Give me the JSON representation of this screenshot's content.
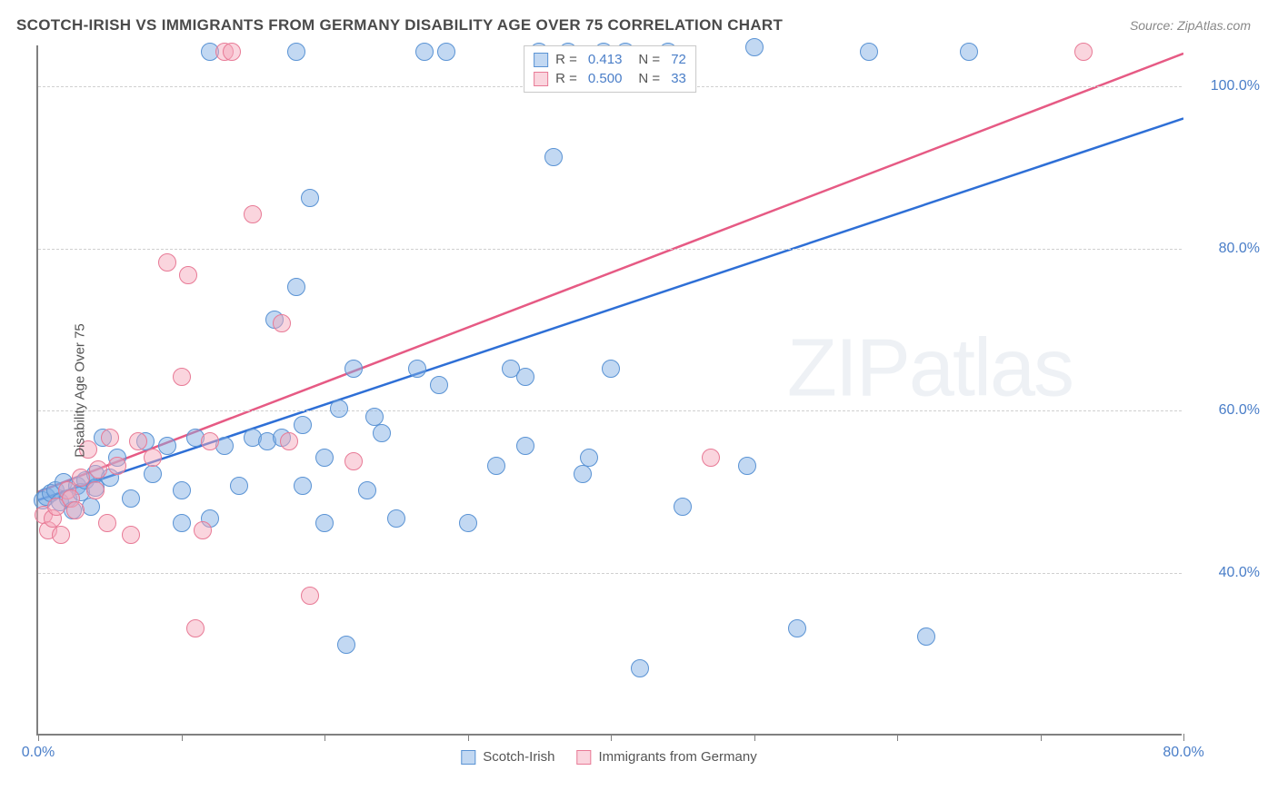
{
  "title": "SCOTCH-IRISH VS IMMIGRANTS FROM GERMANY DISABILITY AGE OVER 75 CORRELATION CHART",
  "source": "Source: ZipAtlas.com",
  "ylabel": "Disability Age Over 75",
  "watermark_a": "ZIP",
  "watermark_b": "atlas",
  "chart": {
    "type": "scatter",
    "xlim": [
      0,
      80
    ],
    "ylim": [
      20,
      105
    ],
    "xticks": [
      0,
      10,
      20,
      30,
      40,
      50,
      60,
      70,
      80
    ],
    "xtick_labels": {
      "0": "0.0%",
      "80": "80.0%"
    },
    "yticks": [
      40,
      60,
      80,
      100
    ],
    "ytick_labels": [
      "40.0%",
      "60.0%",
      "80.0%",
      "100.0%"
    ],
    "grid_color": "#d0d0d0",
    "axis_color": "#808080",
    "background_color": "#ffffff",
    "marker_radius": 10,
    "series": [
      {
        "name": "Scotch-Irish",
        "fill": "rgba(127,173,228,0.48)",
        "stroke": "#5a93d4",
        "trend_color": "#2e6fd6",
        "trend": {
          "x1": 0,
          "y1": 49,
          "x2": 80,
          "y2": 96
        },
        "R": "0.413",
        "N": "72",
        "points": [
          [
            0.3,
            48.8
          ],
          [
            0.6,
            49.2
          ],
          [
            0.9,
            49.6
          ],
          [
            1.2,
            50.0
          ],
          [
            1.5,
            48.5
          ],
          [
            1.8,
            51.0
          ],
          [
            2.1,
            49.0
          ],
          [
            2.4,
            47.5
          ],
          [
            2.7,
            50.5
          ],
          [
            3.0,
            49.8
          ],
          [
            3.3,
            51.2
          ],
          [
            3.7,
            48.0
          ],
          [
            4.0,
            52.0
          ],
          [
            4.0,
            50.3
          ],
          [
            4.5,
            56.5
          ],
          [
            5.0,
            51.5
          ],
          [
            5.5,
            54.0
          ],
          [
            6.5,
            49.0
          ],
          [
            7.5,
            56.0
          ],
          [
            8.0,
            52.0
          ],
          [
            9.0,
            55.5
          ],
          [
            10.0,
            46.0
          ],
          [
            10.0,
            50.0
          ],
          [
            11.0,
            56.5
          ],
          [
            12.0,
            46.5
          ],
          [
            12.0,
            104.0
          ],
          [
            13.0,
            55.5
          ],
          [
            14.0,
            50.5
          ],
          [
            15.0,
            56.5
          ],
          [
            16.0,
            56.0
          ],
          [
            16.5,
            71.0
          ],
          [
            17.0,
            56.5
          ],
          [
            18.5,
            50.5
          ],
          [
            18.0,
            104.0
          ],
          [
            18.0,
            75.0
          ],
          [
            18.5,
            58.0
          ],
          [
            19.0,
            86.0
          ],
          [
            20.0,
            46.0
          ],
          [
            20.0,
            54.0
          ],
          [
            21.0,
            60.0
          ],
          [
            21.5,
            31.0
          ],
          [
            22.0,
            65.0
          ],
          [
            23.0,
            50.0
          ],
          [
            23.5,
            59.0
          ],
          [
            24.0,
            57.0
          ],
          [
            25.0,
            46.5
          ],
          [
            26.5,
            65.0
          ],
          [
            27.0,
            104.0
          ],
          [
            28.0,
            63.0
          ],
          [
            28.5,
            104.0
          ],
          [
            30.0,
            46.0
          ],
          [
            32.0,
            53.0
          ],
          [
            33.0,
            65.0
          ],
          [
            34.0,
            64.0
          ],
          [
            34.0,
            55.5
          ],
          [
            35.0,
            104.0
          ],
          [
            36.0,
            91.0
          ],
          [
            37.0,
            104.0
          ],
          [
            38.0,
            52.0
          ],
          [
            38.5,
            54.0
          ],
          [
            39.5,
            104.0
          ],
          [
            40.0,
            65.0
          ],
          [
            41.0,
            104.0
          ],
          [
            42.0,
            28.0
          ],
          [
            44.0,
            104.0
          ],
          [
            45.0,
            48.0
          ],
          [
            50.0,
            104.5
          ],
          [
            49.5,
            53.0
          ],
          [
            53.0,
            33.0
          ],
          [
            58.0,
            104.0
          ],
          [
            62.0,
            32.0
          ],
          [
            65.0,
            104.0
          ]
        ]
      },
      {
        "name": "Immigrants from Germany",
        "fill": "rgba(244,168,185,0.48)",
        "stroke": "#e87a96",
        "trend_color": "#e65a84",
        "trend": {
          "x1": 0,
          "y1": 50,
          "x2": 80,
          "y2": 104
        },
        "R": "0.500",
        "N": "33",
        "points": [
          [
            0.4,
            47.0
          ],
          [
            0.7,
            45.0
          ],
          [
            1.0,
            46.5
          ],
          [
            1.3,
            48.0
          ],
          [
            1.6,
            44.5
          ],
          [
            2.0,
            50.0
          ],
          [
            2.3,
            49.0
          ],
          [
            2.6,
            47.5
          ],
          [
            3.0,
            51.5
          ],
          [
            3.5,
            55.0
          ],
          [
            4.0,
            50.0
          ],
          [
            4.2,
            52.5
          ],
          [
            4.8,
            46.0
          ],
          [
            5.0,
            56.5
          ],
          [
            5.5,
            53.0
          ],
          [
            6.5,
            44.5
          ],
          [
            7.0,
            56.0
          ],
          [
            8.0,
            54.0
          ],
          [
            9.0,
            78.0
          ],
          [
            10.0,
            64.0
          ],
          [
            10.5,
            76.5
          ],
          [
            11.0,
            33.0
          ],
          [
            11.5,
            45.0
          ],
          [
            12.0,
            56.0
          ],
          [
            13.0,
            104.0
          ],
          [
            13.5,
            104.0
          ],
          [
            15.0,
            84.0
          ],
          [
            17.0,
            70.5
          ],
          [
            17.5,
            56.0
          ],
          [
            19.0,
            37.0
          ],
          [
            22.0,
            53.5
          ],
          [
            47.0,
            54.0
          ],
          [
            73.0,
            104.0
          ]
        ]
      }
    ]
  },
  "legend_top_rows": [
    {
      "sw_fill": "rgba(127,173,228,0.48)",
      "sw_stroke": "#5a93d4",
      "r_label": "R =",
      "r_val": "0.413",
      "n_label": "N =",
      "n_val": "72"
    },
    {
      "sw_fill": "rgba(244,168,185,0.48)",
      "sw_stroke": "#e87a96",
      "r_label": "R =",
      "r_val": "0.500",
      "n_label": "N =",
      "n_val": "33"
    }
  ],
  "legend_bottom": [
    {
      "sw_fill": "rgba(127,173,228,0.48)",
      "sw_stroke": "#5a93d4",
      "label": "Scotch-Irish"
    },
    {
      "sw_fill": "rgba(244,168,185,0.48)",
      "sw_stroke": "#e87a96",
      "label": "Immigrants from Germany"
    }
  ]
}
